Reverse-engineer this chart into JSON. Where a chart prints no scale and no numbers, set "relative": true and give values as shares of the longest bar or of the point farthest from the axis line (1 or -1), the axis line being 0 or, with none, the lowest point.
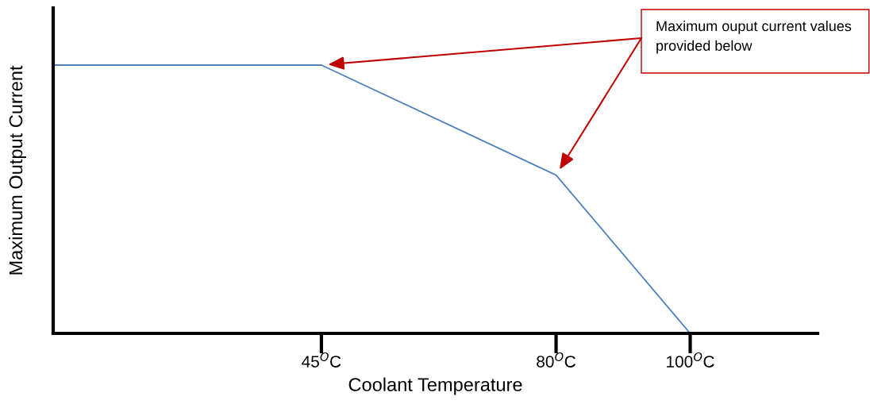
{
  "chart_data": {
    "type": "line",
    "relative": true,
    "xlabel": "Coolant Temperature",
    "ylabel": "Maximum Output Current",
    "x": [
      5,
      45,
      80,
      100
    ],
    "xlim": [
      5,
      119
    ],
    "xticks": [
      {
        "value": 45,
        "label": "45$^{O}$C"
      },
      {
        "value": 80,
        "label": "80$^{O}$C"
      },
      {
        "value": 100,
        "label": "100$^{O}$C"
      }
    ],
    "series": [
      {
        "color": "#4f81bd",
        "values": [
          1,
          1,
          0.59,
          0
        ]
      }
    ],
    "annotations": [
      "Maximum ouput current values provided below"
    ],
    "grid": false
  }
}
